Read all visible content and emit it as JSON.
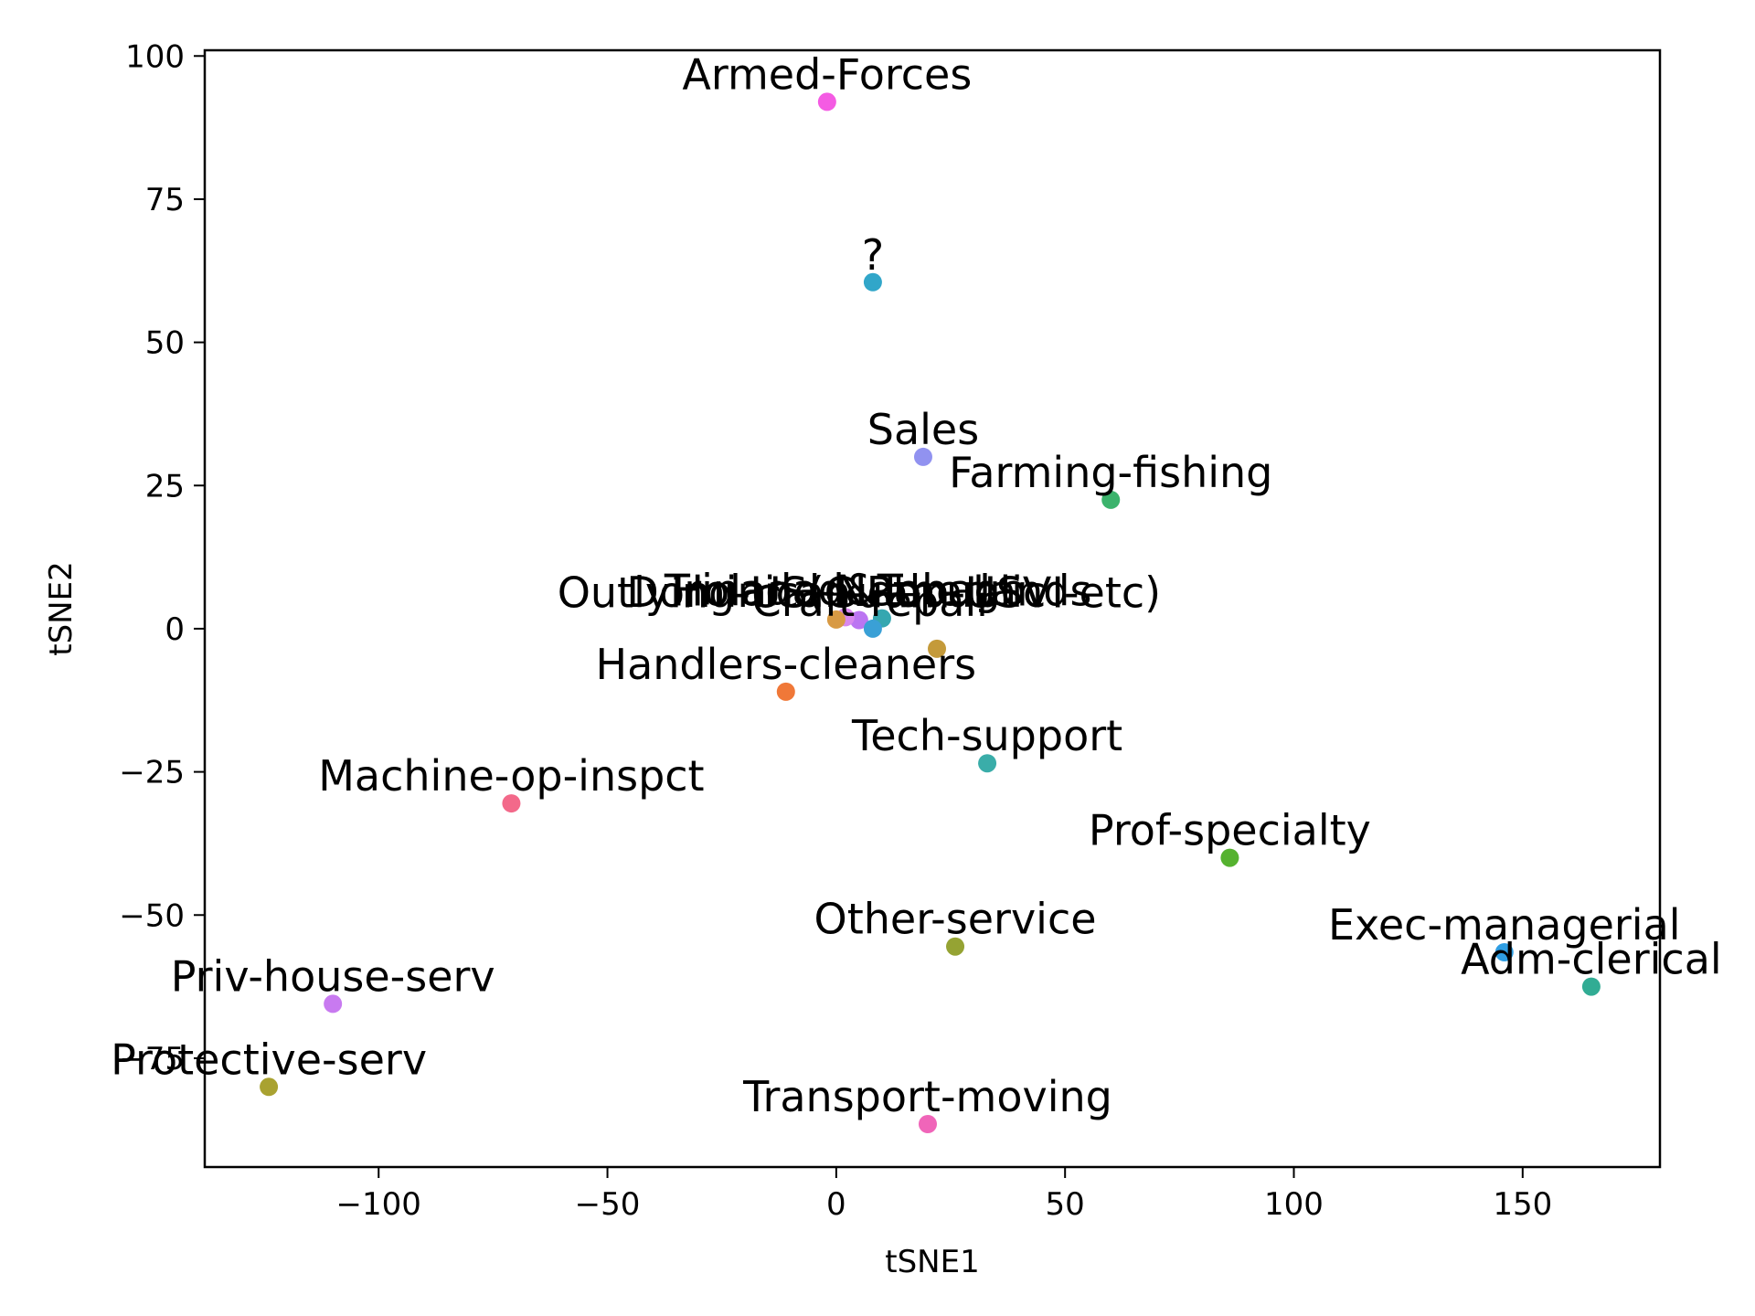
{
  "chart_data": {
    "type": "scatter",
    "title": "",
    "xlabel": "tSNE1",
    "ylabel": "tSNE2",
    "xlim": [
      -138,
      180
    ],
    "ylim": [
      -94,
      101
    ],
    "xticks": [
      -100,
      -50,
      0,
      50,
      100,
      150
    ],
    "yticks": [
      -75,
      -50,
      -25,
      0,
      25,
      50,
      75,
      100
    ],
    "xtick_labels": [
      "−100",
      "−50",
      "0",
      "50",
      "100",
      "150"
    ],
    "ytick_labels": [
      "−75",
      "−50",
      "−25",
      "0",
      "25",
      "50",
      "75",
      "100"
    ],
    "grid": false,
    "points": [
      {
        "label": "Armed-Forces",
        "x": -2,
        "y": 92,
        "color": "#f45be3"
      },
      {
        "label": "?",
        "x": 8,
        "y": 60.5,
        "color": "#31a6c9"
      },
      {
        "label": "Sales",
        "x": 19,
        "y": 30,
        "color": "#9192f0"
      },
      {
        "label": "Farming-fishing",
        "x": 60,
        "y": 22.5,
        "color": "#3bb36c"
      },
      {
        "label": "Outlying-US(Guam-USVI-etc)",
        "x": 5,
        "y": 1.5,
        "color": "#bb75f2"
      },
      {
        "label": "Trinadad&Tobago",
        "x": 2,
        "y": 2,
        "color": "#d888ee"
      },
      {
        "label": "Holand-Netherlands",
        "x": 10,
        "y": 1.8,
        "color": "#35a7b0"
      },
      {
        "label": "Dominican-Republic",
        "x": 0,
        "y": 1.6,
        "color": "#d89a44"
      },
      {
        "label": "Craft-repair",
        "x": 8,
        "y": 0,
        "color": "#3aa0d6"
      },
      {
        "label": "",
        "x": 22,
        "y": -3.5,
        "color": "#c49a3a"
      },
      {
        "label": "Handlers-cleaners",
        "x": -11,
        "y": -11,
        "color": "#f07838"
      },
      {
        "label": "Tech-support",
        "x": 33,
        "y": -23.5,
        "color": "#3aada9"
      },
      {
        "label": "Machine-op-inspct",
        "x": -71,
        "y": -30.5,
        "color": "#f3698a"
      },
      {
        "label": "Prof-specialty",
        "x": 86,
        "y": -40,
        "color": "#55b22f"
      },
      {
        "label": "Other-service",
        "x": 26,
        "y": -55.5,
        "color": "#95a333"
      },
      {
        "label": "Exec-managerial",
        "x": 146,
        "y": -56.5,
        "color": "#2f9ee3"
      },
      {
        "label": "Adm-clerical",
        "x": 165,
        "y": -62.5,
        "color": "#31ac94"
      },
      {
        "label": "Priv-house-serv",
        "x": -110,
        "y": -65.5,
        "color": "#c87af0"
      },
      {
        "label": "Protective-serv",
        "x": -124,
        "y": -80,
        "color": "#a9a231"
      },
      {
        "label": "Transport-moving",
        "x": 20,
        "y": -86.5,
        "color": "#f065b9"
      }
    ]
  }
}
